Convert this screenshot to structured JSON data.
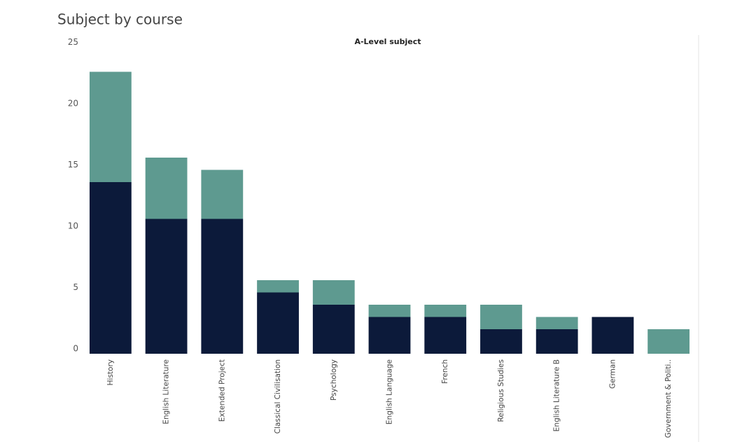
{
  "chart_data": {
    "type": "stacked_bar",
    "title": "Subject by course",
    "subtitle": "A-Level subject",
    "categories": [
      "History",
      "English Literature",
      "Extended Project",
      "Classical Civilisation",
      "Psychology",
      "English Language",
      "French",
      "Religious Studies",
      "English Literature B",
      "German",
      "Government & Politi.."
    ],
    "series": [
      {
        "color": "#0c1a3a",
        "values": [
          14,
          11,
          11,
          5,
          4,
          3,
          3,
          2,
          2,
          3,
          0
        ]
      },
      {
        "color": "#5e9a90",
        "values": [
          9,
          5,
          4,
          1,
          2,
          1,
          1,
          2,
          1,
          0,
          2
        ]
      }
    ],
    "ylim": [
      0,
      25
    ],
    "yticks": [
      0,
      5,
      10,
      15,
      20,
      25
    ],
    "grid": false
  }
}
